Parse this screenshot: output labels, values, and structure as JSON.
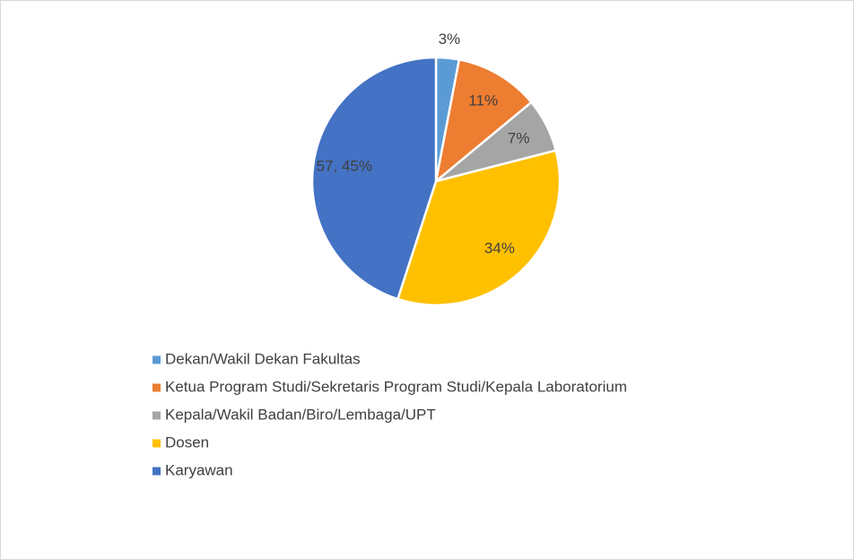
{
  "chart_data": {
    "type": "pie",
    "categories": [
      "Dekan/Wakil Dekan Fakultas",
      "Ketua Program Studi/Sekretaris Program Studi/Kepala Laboratorium",
      "Kepala/Wakil Badan/Biro/Lembaga/UPT",
      "Dosen",
      "Karyawan"
    ],
    "values": [
      3,
      11,
      7,
      34,
      45
    ],
    "value_labels": [
      "3%",
      "11%",
      "7%",
      "34%",
      "57, 45%"
    ],
    "colors": [
      "#5b9bd5",
      "#ed7d31",
      "#a5a5a5",
      "#ffc000",
      "#4472c4"
    ]
  }
}
